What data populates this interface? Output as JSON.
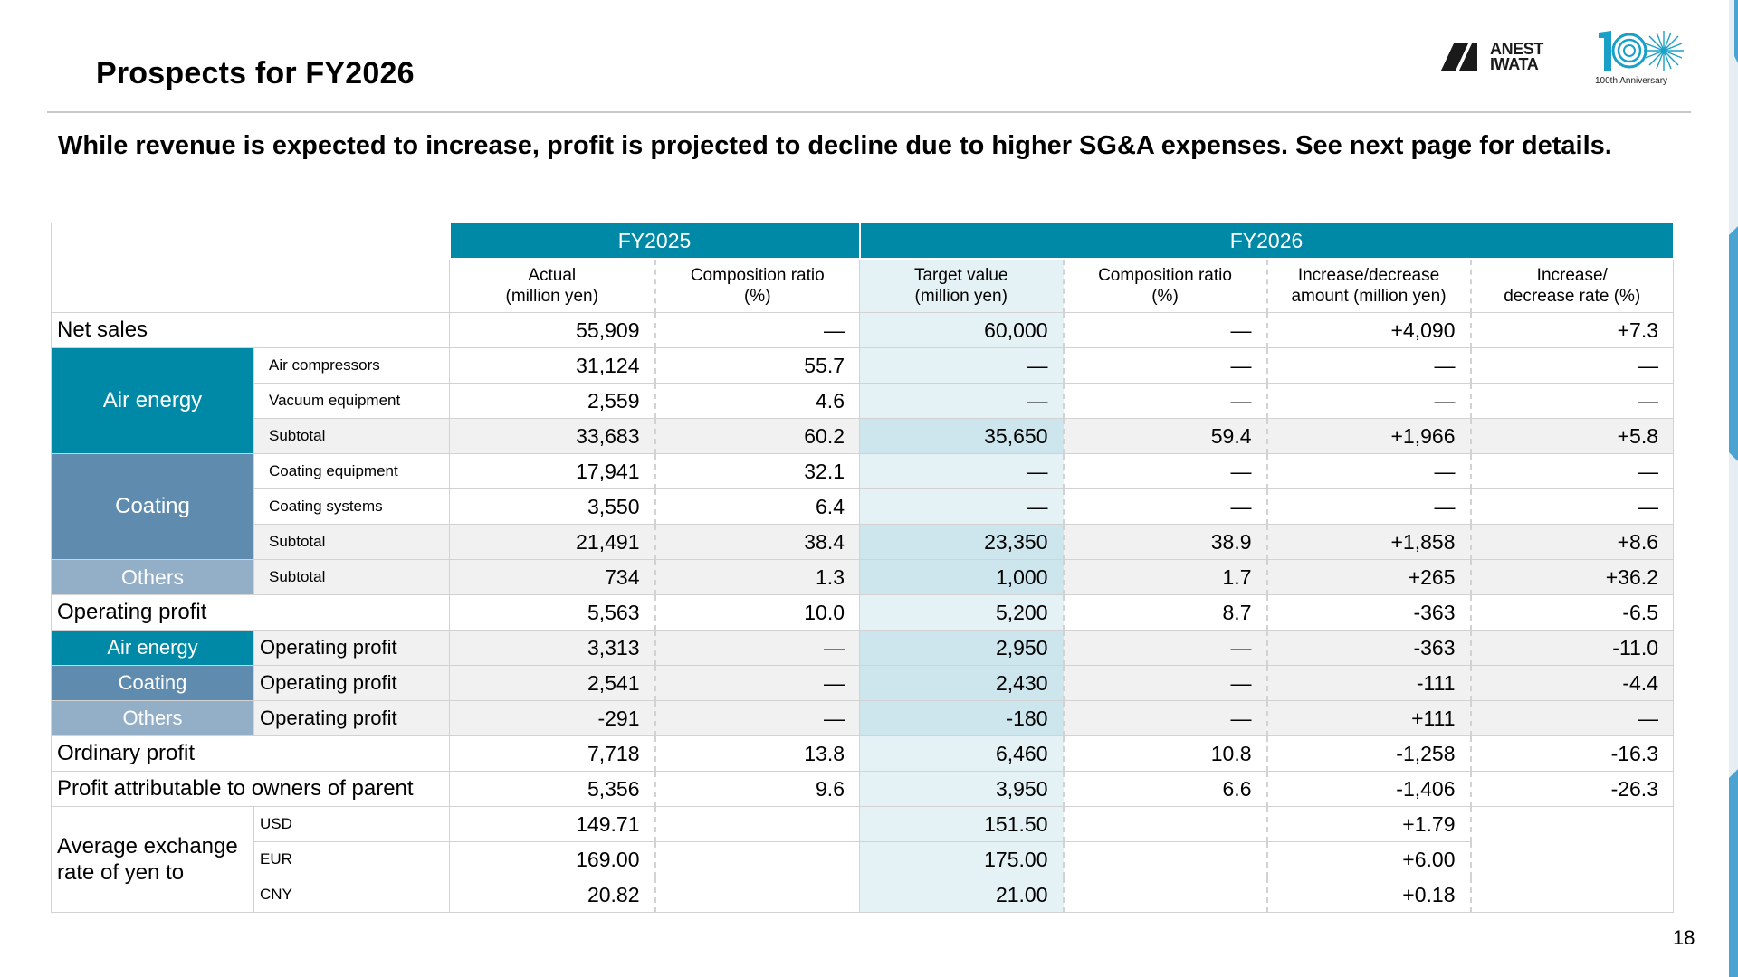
{
  "page": {
    "title": "Prospects for FY2026",
    "headline": "While revenue is expected to increase, profit is projected to decline due to higher SG&A expenses. See next page for details.",
    "page_number": "18",
    "logo_text_1": "ANEST",
    "logo_text_2": "IWATA",
    "anniversary_caption": "100th Anniversary",
    "accent_color": "#0089a6",
    "coating_color": "#5f8cae",
    "others_color": "#93afc8"
  },
  "table": {
    "fy2025": "FY2025",
    "fy2026": "FY2026",
    "col_actual_1": "Actual",
    "col_actual_2": "(million yen)",
    "col_comp_1": "Composition ratio",
    "col_comp_2": "(%)",
    "col_target_1": "Target value",
    "col_target_2": "(million yen)",
    "col_inc_amt_1": "Increase/decrease",
    "col_inc_amt_2": "amount (million yen)",
    "col_inc_rate_1": "Increase/",
    "col_inc_rate_2": "decrease rate (%)",
    "seg_air": "Air energy",
    "seg_coating": "Coating",
    "seg_others": "Others",
    "fx_label_1": "Average exchange",
    "fx_label_2": "rate of yen to",
    "rows": {
      "net_sales": {
        "label": "Net sales",
        "v": [
          "55,909",
          "—",
          "60,000",
          "—",
          "+4,090",
          "+7.3"
        ]
      },
      "air_comp": {
        "label": "Air compressors",
        "v": [
          "31,124",
          "55.7",
          "—",
          "—",
          "—",
          "—"
        ]
      },
      "vacuum": {
        "label": "Vacuum equipment",
        "v": [
          "2,559",
          "4.6",
          "—",
          "—",
          "—",
          "—"
        ]
      },
      "air_sub": {
        "label": "Subtotal",
        "v": [
          "33,683",
          "60.2",
          "35,650",
          "59.4",
          "+1,966",
          "+5.8"
        ]
      },
      "coat_eq": {
        "label": "Coating equipment",
        "v": [
          "17,941",
          "32.1",
          "—",
          "—",
          "—",
          "—"
        ]
      },
      "coat_sys": {
        "label": "Coating systems",
        "v": [
          "3,550",
          "6.4",
          "—",
          "—",
          "—",
          "—"
        ]
      },
      "coat_sub": {
        "label": "Subtotal",
        "v": [
          "21,491",
          "38.4",
          "23,350",
          "38.9",
          "+1,858",
          "+8.6"
        ]
      },
      "oth_sub": {
        "label": "Subtotal",
        "v": [
          "734",
          "1.3",
          "1,000",
          "1.7",
          "+265",
          "+36.2"
        ]
      },
      "op_profit": {
        "label": "Operating profit",
        "v": [
          "5,563",
          "10.0",
          "5,200",
          "8.7",
          "-363",
          "-6.5"
        ]
      },
      "air_op": {
        "label": "Operating profit",
        "v": [
          "3,313",
          "—",
          "2,950",
          "—",
          "-363",
          "-11.0"
        ]
      },
      "coat_op": {
        "label": "Operating profit",
        "v": [
          "2,541",
          "—",
          "2,430",
          "—",
          "-111",
          "-4.4"
        ]
      },
      "oth_op": {
        "label": "Operating profit",
        "v": [
          "-291",
          "—",
          "-180",
          "—",
          "+111",
          "—"
        ]
      },
      "ord_profit": {
        "label": "Ordinary profit",
        "v": [
          "7,718",
          "13.8",
          "6,460",
          "10.8",
          "-1,258",
          "-16.3"
        ]
      },
      "parent_profit": {
        "label": "Profit attributable to owners of parent",
        "v": [
          "5,356",
          "9.6",
          "3,950",
          "6.6",
          "-1,406",
          "-26.3"
        ]
      },
      "usd": {
        "label": "USD",
        "v": [
          "149.71",
          "",
          "151.50",
          "",
          "+1.79",
          ""
        ]
      },
      "eur": {
        "label": "EUR",
        "v": [
          "169.00",
          "",
          "175.00",
          "",
          "+6.00",
          ""
        ]
      },
      "cny": {
        "label": "CNY",
        "v": [
          "20.82",
          "",
          "21.00",
          "",
          "+0.18",
          ""
        ]
      }
    }
  }
}
